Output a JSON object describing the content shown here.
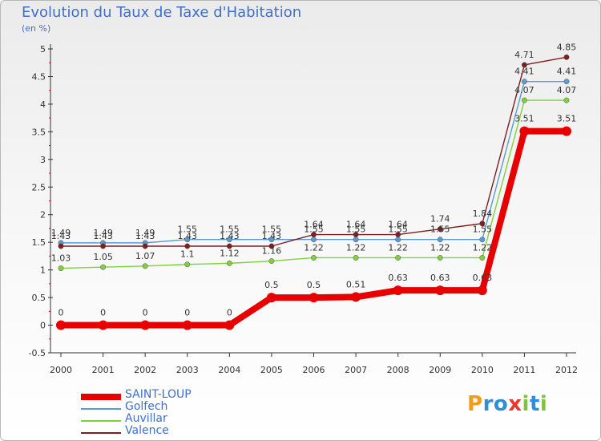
{
  "chart_data": {
    "type": "line",
    "title": "Evolution du Taux de Taxe d'Habitation",
    "subtitle": "(en %)",
    "x": [
      "2000",
      "2001",
      "2002",
      "2003",
      "2004",
      "2005",
      "2006",
      "2007",
      "2008",
      "2009",
      "2010",
      "2011",
      "2012"
    ],
    "ylim": [
      -0.5,
      5
    ],
    "yticks": [
      "-0.5",
      "0",
      "0.5",
      "1",
      "1.5",
      "2",
      "2.5",
      "3",
      "3.5",
      "4",
      "4.5",
      "5"
    ],
    "grid": false,
    "legend_position": "bottom-left",
    "series": [
      {
        "name": "SAINT-LOUP",
        "color": "#e60000",
        "values": [
          0,
          0,
          0,
          0,
          0,
          0.5,
          0.5,
          0.51,
          0.63,
          0.63,
          0.63,
          3.51,
          3.51
        ],
        "labels": [
          "0",
          "0",
          "0",
          "0",
          "0",
          "0.5",
          "0.5",
          "0.51",
          "0.63",
          "0.63",
          "0.63",
          "3.51",
          "3.51"
        ]
      },
      {
        "name": "Golfech",
        "color": "#5a9bd5",
        "values": [
          1.49,
          1.49,
          1.49,
          1.55,
          1.55,
          1.55,
          1.55,
          1.55,
          1.55,
          1.55,
          1.55,
          4.41,
          4.41
        ],
        "labels": [
          "1.49",
          "1.49",
          "1.49",
          "1.55",
          "1.55",
          "1.55",
          "1.55",
          "1.55",
          "1.55",
          "1.55",
          "1.55",
          "4.41",
          "4.41"
        ]
      },
      {
        "name": "Auvillar",
        "color": "#7fd13b",
        "values": [
          1.03,
          1.05,
          1.07,
          1.1,
          1.12,
          1.16,
          1.22,
          1.22,
          1.22,
          1.22,
          1.22,
          4.07,
          4.07
        ],
        "labels": [
          "1.03",
          "1.05",
          "1.07",
          "1.1",
          "1.12",
          "1.16",
          "1.22",
          "1.22",
          "1.22",
          "1.22",
          "1.22",
          "4.07",
          "4.07"
        ]
      },
      {
        "name": "Valence",
        "color": "#7b1f1f",
        "values": [
          1.43,
          1.43,
          1.43,
          1.43,
          1.43,
          1.43,
          1.64,
          1.64,
          1.64,
          1.74,
          1.84,
          4.71,
          4.85
        ],
        "labels": [
          "1.43",
          "1.43",
          "1.43",
          "1.43",
          "1.43",
          "1.43",
          "1.64",
          "1.64",
          "1.64",
          "1.74",
          "1.84",
          "4.71",
          "4.85"
        ]
      }
    ]
  },
  "legend": {
    "items": [
      "SAINT-LOUP",
      "Golfech",
      "Auvillar",
      "Valence"
    ]
  },
  "logo": {
    "text": "Proxiti",
    "letters": [
      "P",
      "r",
      "o",
      "x",
      "i",
      "t",
      "i"
    ],
    "colors": [
      "#f39c1a",
      "#2d8fd6",
      "#2d8fd6",
      "#e8392b",
      "#7fc241",
      "#2d8fd6",
      "#7fc241"
    ]
  }
}
